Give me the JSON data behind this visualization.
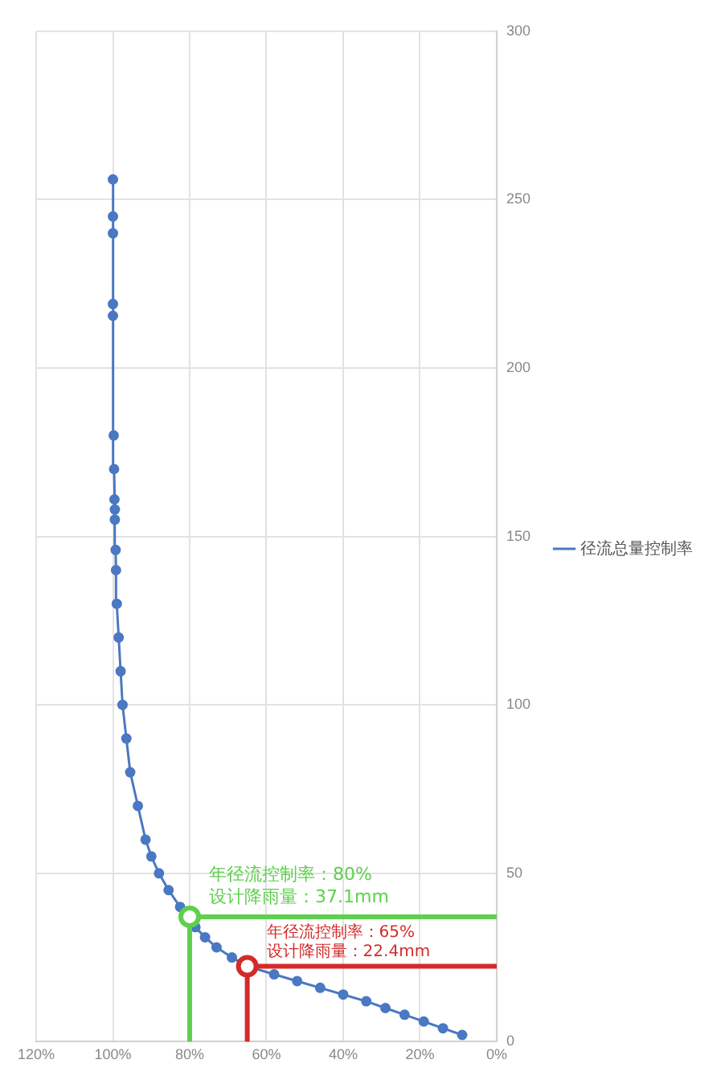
{
  "chart_data": {
    "type": "line",
    "xlim": [
      120,
      0
    ],
    "xticks": [
      {
        "value": 120,
        "label": "120%"
      },
      {
        "value": 100,
        "label": "100%"
      },
      {
        "value": 80,
        "label": "80%"
      },
      {
        "value": 60,
        "label": "60%"
      },
      {
        "value": 40,
        "label": "40%"
      },
      {
        "value": 20,
        "label": "20%"
      },
      {
        "value": 0,
        "label": "0%"
      }
    ],
    "ylim": [
      0,
      300
    ],
    "yticks": [
      0,
      50,
      100,
      150,
      200,
      250,
      300
    ],
    "grid": true,
    "legend": "right",
    "marker": "circle",
    "series": [
      {
        "name": "径流总量控制率",
        "color": "#4a78c2",
        "x": [
          9,
          14,
          19,
          24,
          29,
          34,
          40,
          46,
          52,
          58,
          65,
          69,
          73,
          76,
          78.5,
          80,
          82.5,
          85.5,
          88,
          90,
          91.5,
          93.5,
          95.5,
          96.5,
          97.5,
          98,
          98.5,
          99,
          99.2,
          99.3,
          99.5,
          99.5,
          99.6,
          99.7,
          99.8,
          100,
          100,
          100,
          100,
          100
        ],
        "values": [
          2,
          4,
          6,
          8,
          10,
          12,
          14,
          16,
          18,
          20,
          22.4,
          25,
          28,
          31,
          34,
          37.1,
          40,
          45,
          50,
          55,
          60,
          70,
          80,
          90,
          100,
          110,
          120,
          130,
          140,
          146,
          155,
          158,
          161,
          170,
          180,
          215.5,
          219,
          240,
          245,
          256
        ]
      },
      {
        "type": "line",
        "color": "#5ed04e",
        "marker": "none",
        "line_style": "solid",
        "x": [
          80,
          80,
          0
        ],
        "values": [
          0,
          37.1,
          37.1
        ]
      },
      {
        "type": "line",
        "color": "#d42a2a",
        "marker": "none",
        "line_style": "solid",
        "x": [
          65,
          65,
          0
        ],
        "values": [
          0,
          22.4,
          22.4
        ]
      },
      {
        "type": "scatter",
        "color": "#5ed04e",
        "marker": "circle",
        "x": [
          80
        ],
        "values": [
          37.1
        ]
      },
      {
        "type": "scatter",
        "color": "#d42a2a",
        "marker": "circle",
        "x": [
          65
        ],
        "values": [
          22.4
        ]
      }
    ],
    "annotations": [
      {
        "text": "年径流控制率：80%\n设计降雨量：37.1mm",
        "x": 80,
        "y": 37.1
      },
      {
        "text": "年径流控制率：65%\n设计降雨量：22.4mm",
        "x": 65,
        "y": 22.4
      }
    ]
  }
}
